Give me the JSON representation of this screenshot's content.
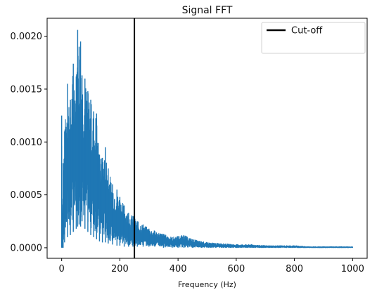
{
  "chart_data": {
    "type": "line",
    "title": "Signal FFT",
    "xlabel": "Frequency (Hz)",
    "ylabel": "",
    "xlim": [
      -50,
      1050
    ],
    "ylim": [
      -0.0001,
      0.00217
    ],
    "xticks": [
      0,
      200,
      400,
      600,
      800,
      1000
    ],
    "xtick_labels": [
      "0",
      "200",
      "400",
      "600",
      "800",
      "1000"
    ],
    "yticks": [
      0.0,
      0.0005,
      0.001,
      0.0015,
      0.002
    ],
    "ytick_labels": [
      "0.0000",
      "0.0005",
      "0.0010",
      "0.0015",
      "0.0020"
    ],
    "grid": false,
    "legend_position": "top-right",
    "legend": [
      "Cut-off"
    ],
    "series": [
      {
        "name": "",
        "color": "#1f77b4",
        "x": [
          0,
          2,
          5,
          10,
          20,
          30,
          40,
          50,
          55,
          60,
          65,
          70,
          80,
          90,
          100,
          110,
          120,
          130,
          140,
          150,
          160,
          175,
          190,
          200,
          215,
          230,
          245,
          260,
          280,
          300,
          320,
          350,
          380,
          400,
          420,
          450,
          480,
          500,
          550,
          600,
          650,
          700,
          750,
          800,
          850,
          900,
          950,
          1000
        ],
        "upper": [
          0.00125,
          0.0001,
          0.0008,
          0.0011,
          0.00155,
          0.0014,
          0.00174,
          0.00162,
          0.00206,
          0.0019,
          0.00195,
          0.00163,
          0.0016,
          0.00148,
          0.0014,
          0.00129,
          0.00127,
          0.00088,
          0.00085,
          0.00095,
          0.00075,
          0.0006,
          0.00055,
          0.00048,
          0.0004,
          0.00033,
          0.0003,
          0.00025,
          0.00022,
          0.00018,
          0.00016,
          0.00013,
          0.0001,
          0.00011,
          0.00012,
          8e-05,
          6e-05,
          5e-05,
          4e-05,
          3e-05,
          3e-05,
          2e-05,
          2e-05,
          2e-05,
          1e-05,
          1e-05,
          1e-05,
          1e-05
        ],
        "lower": [
          0.0,
          0.0,
          0.0,
          5e-05,
          0.0001,
          0.00012,
          0.00015,
          0.00018,
          0.0002,
          0.00022,
          0.0002,
          0.00025,
          0.00018,
          0.00015,
          0.00012,
          0.0001,
          8e-05,
          6e-05,
          5e-05,
          5e-05,
          4e-05,
          3e-05,
          2e-05,
          2e-05,
          1e-05,
          1e-05,
          1e-05,
          1e-05,
          1e-05,
          1e-05,
          1e-05,
          0.0,
          0.0,
          0.0,
          0.0,
          0.0,
          0.0,
          0.0,
          0.0,
          0.0,
          0.0,
          0.0,
          0.0,
          0.0,
          0.0,
          0.0,
          0.0,
          0.0
        ]
      }
    ],
    "cutoff": {
      "label": "Cut-off",
      "x": 250,
      "color": "#000000"
    }
  }
}
